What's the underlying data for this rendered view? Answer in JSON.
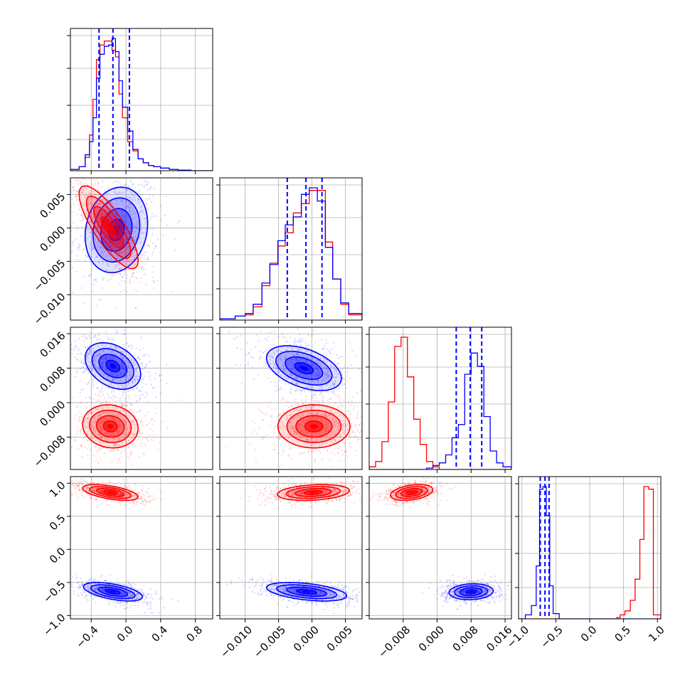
{
  "chart_data": {
    "type": "corner",
    "colors": {
      "blue": "#0000ff",
      "red": "#ff0000",
      "grid": "#b0b0b0"
    },
    "grid": true,
    "x_ranges": [
      [
        -0.64,
        1.0
      ],
      [
        -0.0138,
        0.0075
      ],
      [
        -0.016,
        0.0175
      ],
      [
        -1.05,
        1.05
      ]
    ],
    "y_ranges_2d": [
      null,
      [
        -0.0138,
        0.0075
      ],
      [
        -0.0155,
        0.0175
      ],
      [
        -1.05,
        1.1
      ]
    ],
    "x_tick_values": [
      [
        -0.4,
        0.0,
        0.4,
        0.8
      ],
      [
        -0.01,
        -0.005,
        0.0,
        0.005
      ],
      [
        -0.008,
        0.0,
        0.008,
        0.016
      ],
      [
        -1.0,
        -0.5,
        0.0,
        0.5,
        1.0
      ]
    ],
    "x_tick_labels": [
      [
        "−0.4",
        "0.0",
        "0.4",
        "0.8"
      ],
      [
        "−0.010",
        "−0.005",
        "0.000",
        "0.005"
      ],
      [
        "−0.008",
        "0.000",
        "0.008",
        "0.016"
      ],
      [
        "−1.0",
        "−0.5",
        "0.0",
        "0.5",
        "1.0"
      ]
    ],
    "y_tick_values": [
      null,
      [
        -0.01,
        -0.005,
        0.0,
        0.005
      ],
      [
        -0.008,
        0.0,
        0.008,
        0.016
      ],
      [
        -1.0,
        -0.5,
        0.0,
        0.5,
        1.0
      ]
    ],
    "y_tick_labels": [
      null,
      [
        "−0.010",
        "−0.005",
        "0.000",
        "0.005"
      ],
      [
        "−0.008",
        "0.000",
        "0.008",
        "0.016"
      ],
      [
        "−1.0",
        "−0.5",
        "0.0",
        "0.5",
        "1.0"
      ]
    ],
    "quantiles_blue": [
      [
        -0.31,
        -0.15,
        0.04
      ],
      [
        -0.0037,
        -0.0009,
        0.0015
      ],
      [
        0.0045,
        0.0078,
        0.0105
      ],
      [
        -0.73,
        -0.66,
        -0.6
      ]
    ],
    "histograms": [
      {
        "edges": [
          -0.64,
          -0.54,
          -0.47,
          -0.42,
          -0.38,
          -0.34,
          -0.3,
          -0.25,
          -0.2,
          -0.16,
          -0.12,
          -0.08,
          -0.04,
          0.02,
          0.08,
          0.14,
          0.2,
          0.26,
          0.32,
          0.4,
          0.5,
          0.6,
          0.75,
          1.0
        ],
        "blue": [
          0.01,
          0.03,
          0.12,
          0.22,
          0.4,
          0.7,
          0.88,
          0.94,
          0.95,
          1.0,
          0.9,
          0.68,
          0.48,
          0.3,
          0.16,
          0.09,
          0.06,
          0.04,
          0.03,
          0.02,
          0.01,
          0.005,
          0.0
        ],
        "red": [
          0.01,
          0.03,
          0.1,
          0.27,
          0.54,
          0.84,
          0.95,
          0.98,
          0.98,
          0.91,
          0.86,
          0.58,
          0.4,
          0.22,
          0.15,
          0.09,
          0.06,
          0.04,
          0.03,
          0.02,
          0.01,
          0.005,
          0.0
        ]
      },
      {
        "edges": [
          -0.0138,
          -0.0115,
          -0.01,
          -0.0088,
          -0.0075,
          -0.0063,
          -0.0051,
          -0.004,
          -0.0028,
          -0.0016,
          -0.0004,
          0.0008,
          0.002,
          0.0031,
          0.0043,
          0.0055,
          0.0075
        ],
        "blue": [
          0.01,
          0.03,
          0.05,
          0.12,
          0.28,
          0.42,
          0.6,
          0.72,
          0.78,
          0.95,
          1.0,
          0.9,
          0.55,
          0.31,
          0.13,
          0.05
        ],
        "red": [
          0.01,
          0.03,
          0.04,
          0.1,
          0.26,
          0.43,
          0.56,
          0.66,
          0.81,
          0.88,
          0.98,
          0.98,
          0.59,
          0.31,
          0.12,
          0.04
        ]
      },
      {
        "edges": [
          -0.016,
          -0.0145,
          -0.013,
          -0.0115,
          -0.01,
          -0.0085,
          -0.007,
          -0.0055,
          -0.004,
          -0.0025,
          -0.001,
          0.0005,
          0.002,
          0.0035,
          0.005,
          0.0065,
          0.008,
          0.0095,
          0.011,
          0.0125,
          0.014,
          0.0155,
          0.0175
        ],
        "blue": [
          0.0,
          0.0,
          0.0,
          0.0,
          0.0,
          0.0,
          0.0,
          0.0,
          0.0,
          0.01,
          0.03,
          0.05,
          0.11,
          0.24,
          0.34,
          0.72,
          0.88,
          0.78,
          0.4,
          0.14,
          0.05,
          0.02
        ],
        "red": [
          0.02,
          0.06,
          0.21,
          0.51,
          0.93,
          1.0,
          0.7,
          0.38,
          0.19,
          0.06,
          0.02,
          0.0,
          0.0,
          0.0,
          0.0,
          0.0,
          0.0,
          0.0,
          0.0,
          0.0,
          0.0,
          0.0
        ]
      },
      {
        "edges": [
          -1.05,
          -0.95,
          -0.86,
          -0.79,
          -0.74,
          -0.69,
          -0.64,
          -0.59,
          -0.54,
          -0.45,
          0.0,
          0.4,
          0.45,
          0.52,
          0.6,
          0.67,
          0.74,
          0.8,
          0.87,
          0.94,
          1.05
        ],
        "blue": [
          0.0,
          0.03,
          0.1,
          0.4,
          0.98,
          1.0,
          0.78,
          0.25,
          0.04,
          0.0,
          0.0,
          0.0,
          0.0,
          0.0,
          0.0,
          0.0,
          0.0,
          0.0,
          0.0,
          0.0
        ],
        "red": [
          0.0,
          0.0,
          0.0,
          0.0,
          0.0,
          0.0,
          0.0,
          0.0,
          0.0,
          0.0,
          0.0,
          0.01,
          0.03,
          0.06,
          0.14,
          0.3,
          0.6,
          1.0,
          0.98,
          0.03
        ]
      }
    ],
    "pairs": [
      {
        "row": 1,
        "col": 0,
        "blue": {
          "mx": -0.11,
          "my": -0.0003,
          "sx": 0.18,
          "sy": 0.0032,
          "rho": 0.15
        },
        "red": {
          "mx": -0.2,
          "my": 0.0001,
          "sx": 0.17,
          "sy": 0.0031,
          "rho": -0.8
        }
      },
      {
        "row": 2,
        "col": 0,
        "blue": {
          "mx": -0.15,
          "my": 0.0085,
          "sx": 0.16,
          "sy": 0.0027,
          "rho": -0.35
        },
        "red": {
          "mx": -0.18,
          "my": -0.0055,
          "sx": 0.16,
          "sy": 0.0025,
          "rho": -0.1
        }
      },
      {
        "row": 2,
        "col": 1,
        "blue": {
          "mx": -0.0012,
          "my": 0.008,
          "sx": 0.0028,
          "sy": 0.0026,
          "rho": -0.45
        },
        "red": {
          "mx": 0.0003,
          "my": -0.0055,
          "sx": 0.0027,
          "sy": 0.0025,
          "rho": 0.0
        }
      },
      {
        "row": 3,
        "col": 0,
        "blue": {
          "mx": -0.15,
          "my": -0.64,
          "sx": 0.17,
          "sy": 0.07,
          "rho": -0.55
        },
        "red": {
          "mx": -0.18,
          "my": 0.86,
          "sx": 0.16,
          "sy": 0.06,
          "rho": -0.55
        }
      },
      {
        "row": 3,
        "col": 1,
        "blue": {
          "mx": -0.0008,
          "my": -0.64,
          "sx": 0.003,
          "sy": 0.07,
          "rho": -0.45
        },
        "red": {
          "mx": 0.0002,
          "my": 0.86,
          "sx": 0.0027,
          "sy": 0.06,
          "rho": 0.25
        }
      },
      {
        "row": 3,
        "col": 2,
        "blue": {
          "mx": 0.008,
          "my": -0.64,
          "sx": 0.0026,
          "sy": 0.06,
          "rho": 0.1
        },
        "red": {
          "mx": -0.006,
          "my": 0.86,
          "sx": 0.0025,
          "sy": 0.06,
          "rho": 0.35
        }
      }
    ]
  }
}
